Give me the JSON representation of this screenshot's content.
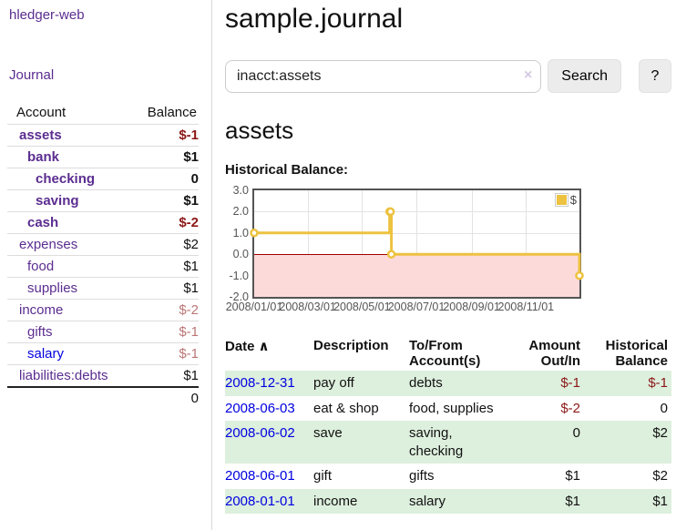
{
  "app": {
    "brand": "hledger-web"
  },
  "colors": {
    "link_purple": "#5b2d90",
    "link_blue": "#0000e0",
    "negative_strong": "#8c1717",
    "negative_soft": "#bc7676",
    "table_stripe_green": "#ddefdd",
    "chart_line_yellow": "#edc240",
    "chart_negative_bg": "#fcdada",
    "chart_zero_line": "#a00000"
  },
  "sidebar": {
    "nav_journal": "Journal",
    "accounts_table": {
      "headers": {
        "account": "Account",
        "balance": "Balance"
      },
      "rows": [
        {
          "name": "assets",
          "depth": 1,
          "bold": true,
          "color": "purple",
          "balance": "$-1",
          "balance_class": "neg-strong"
        },
        {
          "name": "bank",
          "depth": 2,
          "bold": true,
          "color": "purple",
          "balance": "$1",
          "balance_class": "pos"
        },
        {
          "name": "checking",
          "depth": 3,
          "bold": true,
          "color": "purple",
          "balance": "0",
          "balance_class": "pos"
        },
        {
          "name": "saving",
          "depth": 3,
          "bold": true,
          "color": "purple",
          "balance": "$1",
          "balance_class": "pos"
        },
        {
          "name": "cash",
          "depth": 2,
          "bold": true,
          "color": "purple",
          "balance": "$-2",
          "balance_class": "neg-strong"
        },
        {
          "name": "expenses",
          "depth": 1,
          "bold": false,
          "color": "purple",
          "balance": "$2",
          "balance_class": "pos"
        },
        {
          "name": "food",
          "depth": 2,
          "bold": false,
          "color": "purple",
          "balance": "$1",
          "balance_class": "pos"
        },
        {
          "name": "supplies",
          "depth": 2,
          "bold": false,
          "color": "purple",
          "balance": "$1",
          "balance_class": "pos"
        },
        {
          "name": "income",
          "depth": 1,
          "bold": false,
          "color": "purple",
          "balance": "$-2",
          "balance_class": "neg-soft"
        },
        {
          "name": "gifts",
          "depth": 2,
          "bold": false,
          "color": "purple",
          "balance": "$-1",
          "balance_class": "neg-soft"
        },
        {
          "name": "salary",
          "depth": 2,
          "bold": false,
          "color": "blue",
          "balance": "$-1",
          "balance_class": "neg-soft"
        },
        {
          "name": "liabilities:debts",
          "depth": 1,
          "bold": false,
          "color": "purple",
          "balance": "$1",
          "balance_class": "pos"
        }
      ],
      "total": "0"
    }
  },
  "main": {
    "title": "sample.journal",
    "search": {
      "value": "inacct:assets",
      "clear_icon": "×",
      "search_button": "Search",
      "help_button": "?"
    },
    "account_heading": "assets",
    "chart_label": "Historical Balance:"
  },
  "chart_data": {
    "type": "line",
    "style": "step",
    "title": "Historical Balance",
    "legend": {
      "label": "$",
      "position": "top-right"
    },
    "x_range": [
      "2008-01-01",
      "2008-12-31"
    ],
    "ylim": [
      -2,
      3
    ],
    "y_ticks": [
      3,
      2,
      1,
      0,
      -1,
      -2
    ],
    "x_ticks": [
      {
        "date": "2008-01-01",
        "label": "2008/01/01"
      },
      {
        "date": "2008-03-01",
        "label": "2008/03/01"
      },
      {
        "date": "2008-05-01",
        "label": "2008/05/01"
      },
      {
        "date": "2008-07-01",
        "label": "2008/07/01"
      },
      {
        "date": "2008-09-01",
        "label": "2008/09/01"
      },
      {
        "date": "2008-11-01",
        "label": "2008/11/01"
      }
    ],
    "series": [
      {
        "name": "$",
        "color": "#edc240",
        "points": [
          [
            "2008-01-01",
            1
          ],
          [
            "2008-06-01",
            2
          ],
          [
            "2008-06-02",
            2
          ],
          [
            "2008-06-03",
            0
          ],
          [
            "2008-12-31",
            -1
          ]
        ]
      }
    ]
  },
  "register": {
    "headers": [
      "Date",
      "Description",
      "To/From Account(s)",
      "Amount Out/In",
      "Historical Balance"
    ],
    "sort_indicator": "∧",
    "rows": [
      {
        "date": "2008-12-31",
        "description": "pay off",
        "accounts": "debts",
        "amount": "$-1",
        "amount_negative": true,
        "balance": "$-1",
        "balance_negative": true
      },
      {
        "date": "2008-06-03",
        "description": "eat & shop",
        "accounts": "food, supplies",
        "amount": "$-2",
        "amount_negative": true,
        "balance": "0",
        "balance_negative": false
      },
      {
        "date": "2008-06-02",
        "description": "save",
        "accounts": "saving, checking",
        "amount": "0",
        "amount_negative": false,
        "balance": "$2",
        "balance_negative": false
      },
      {
        "date": "2008-06-01",
        "description": "gift",
        "accounts": "gifts",
        "amount": "$1",
        "amount_negative": false,
        "balance": "$2",
        "balance_negative": false
      },
      {
        "date": "2008-01-01",
        "description": "income",
        "accounts": "salary",
        "amount": "$1",
        "amount_negative": false,
        "balance": "$1",
        "balance_negative": false
      }
    ]
  }
}
